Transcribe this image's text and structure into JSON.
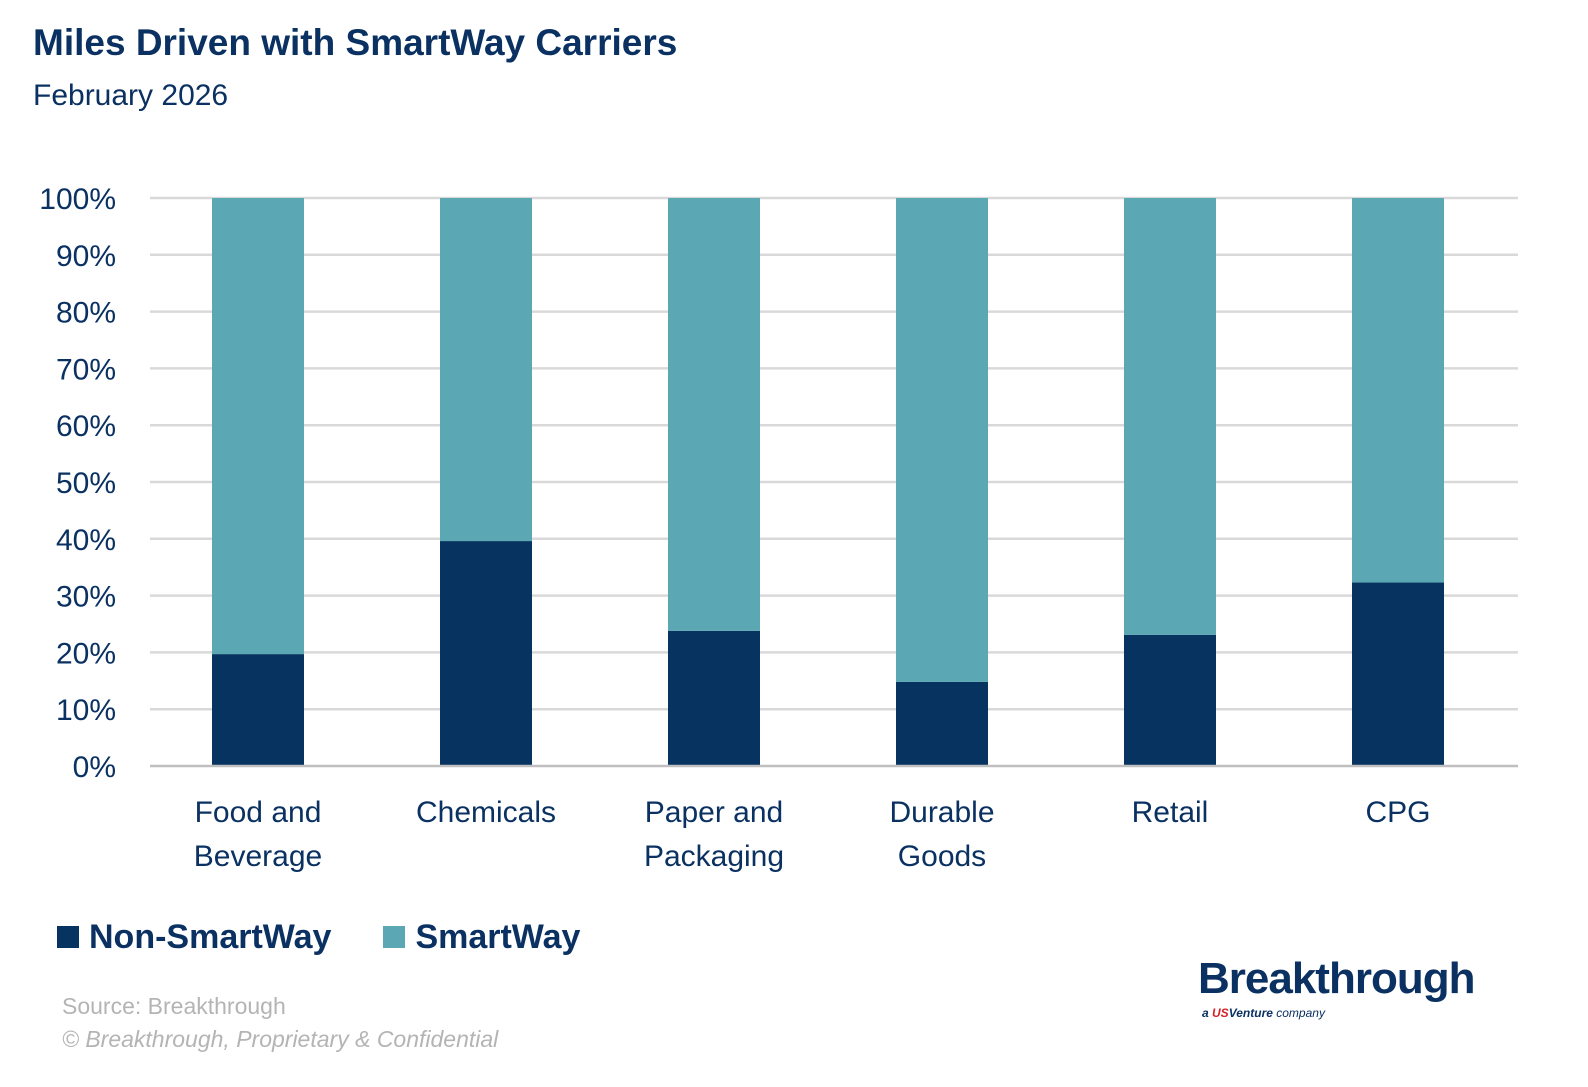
{
  "chart_data": {
    "type": "bar",
    "stacked": true,
    "title": "Miles Driven with SmartWay Carriers",
    "subtitle": "February 2026",
    "categories": [
      [
        "Food and",
        "Beverage"
      ],
      [
        "Chemicals"
      ],
      [
        "Paper and",
        "Packaging"
      ],
      [
        "Durable",
        "Goods"
      ],
      [
        "Retail"
      ],
      [
        "CPG"
      ]
    ],
    "series": [
      {
        "name": "Non-SmartWay",
        "color": "#06335f",
        "values": [
          19.7,
          39.6,
          23.8,
          14.8,
          23.1,
          32.3
        ]
      },
      {
        "name": "SmartWay",
        "color": "#5ba7b4",
        "values": [
          80.3,
          60.4,
          76.2,
          85.2,
          76.9,
          67.7
        ]
      }
    ],
    "yticks": [
      "0%",
      "10%",
      "20%",
      "30%",
      "40%",
      "50%",
      "60%",
      "70%",
      "80%",
      "90%",
      "100%"
    ],
    "ylim": [
      0,
      100
    ],
    "grid": true,
    "legend_placement": "bottom-left"
  },
  "footer": {
    "source": "Source: Breakthrough",
    "copyright": "© Breakthrough, Proprietary & Confidential"
  },
  "logo": {
    "main": "Breakthrough",
    "sub_prefix": "a ",
    "sub_brand": "US",
    "sub_brand2": "Venture",
    "sub_suffix": " company"
  }
}
